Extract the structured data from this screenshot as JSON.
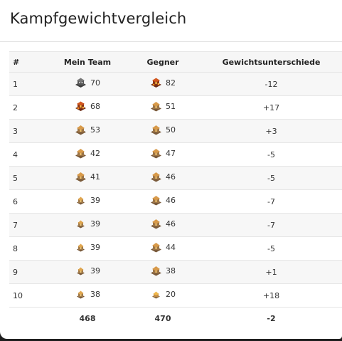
{
  "title": "Kampfgewichtvergleich",
  "headers": {
    "num": "#",
    "team": "Mein Team",
    "opp": "Gegner",
    "diff": "Gewichtsunterschiede"
  },
  "rows": [
    {
      "num": "1",
      "team": {
        "value": "70",
        "icon": "townhall-dark-icon"
      },
      "opp": {
        "value": "82",
        "icon": "townhall-lava-icon"
      },
      "diff": "-12"
    },
    {
      "num": "2",
      "team": {
        "value": "68",
        "icon": "townhall-lava-icon"
      },
      "opp": {
        "value": "51",
        "icon": "townhall-orange-icon"
      },
      "diff": "+17"
    },
    {
      "num": "3",
      "team": {
        "value": "53",
        "icon": "townhall-orange-icon"
      },
      "opp": {
        "value": "50",
        "icon": "townhall-orange-icon"
      },
      "diff": "+3"
    },
    {
      "num": "4",
      "team": {
        "value": "42",
        "icon": "townhall-orange-icon"
      },
      "opp": {
        "value": "47",
        "icon": "townhall-orange-icon"
      },
      "diff": "-5"
    },
    {
      "num": "5",
      "team": {
        "value": "41",
        "icon": "townhall-orange-icon"
      },
      "opp": {
        "value": "46",
        "icon": "townhall-orange-icon"
      },
      "diff": "-5"
    },
    {
      "num": "6",
      "team": {
        "value": "39",
        "icon": "townhall-small-icon"
      },
      "opp": {
        "value": "46",
        "icon": "townhall-orange-icon"
      },
      "diff": "-7"
    },
    {
      "num": "7",
      "team": {
        "value": "39",
        "icon": "townhall-small-icon"
      },
      "opp": {
        "value": "46",
        "icon": "townhall-orange-icon"
      },
      "diff": "-7"
    },
    {
      "num": "8",
      "team": {
        "value": "39",
        "icon": "townhall-small-icon"
      },
      "opp": {
        "value": "44",
        "icon": "townhall-orange-icon"
      },
      "diff": "-5"
    },
    {
      "num": "9",
      "team": {
        "value": "39",
        "icon": "townhall-small-icon"
      },
      "opp": {
        "value": "38",
        "icon": "townhall-orange-icon"
      },
      "diff": "+1"
    },
    {
      "num": "10",
      "team": {
        "value": "38",
        "icon": "townhall-small-icon"
      },
      "opp": {
        "value": "20",
        "icon": "townhall-tiny-icon"
      },
      "diff": "+18"
    }
  ],
  "totals": {
    "team": "468",
    "opp": "470",
    "diff": "-2"
  },
  "colors": {
    "background": "#1e1e1e",
    "card": "#ffffff",
    "stripe": "#f7f7f7",
    "rule": "#e6e6e6"
  }
}
